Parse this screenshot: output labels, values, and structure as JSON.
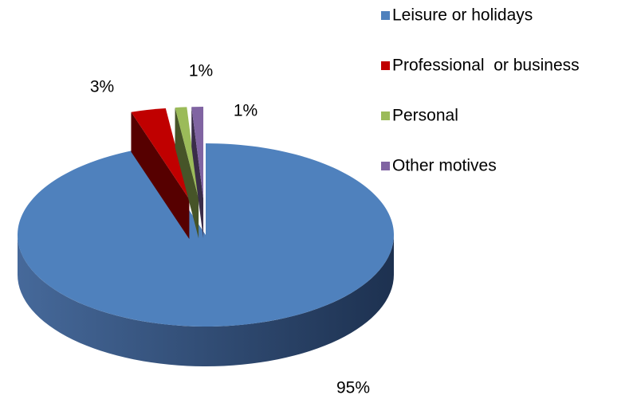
{
  "chart_data": {
    "type": "pie",
    "categories": [
      "Leisure or holidays",
      "Professional  or business",
      "Personal",
      "Other motives"
    ],
    "values": [
      95,
      3,
      1,
      1
    ],
    "value_labels": [
      "95%",
      "3%",
      "1%",
      "1%"
    ],
    "colors": [
      "#4f81bd",
      "#c00000",
      "#9bbb59",
      "#8064a2"
    ],
    "legend": "right"
  }
}
